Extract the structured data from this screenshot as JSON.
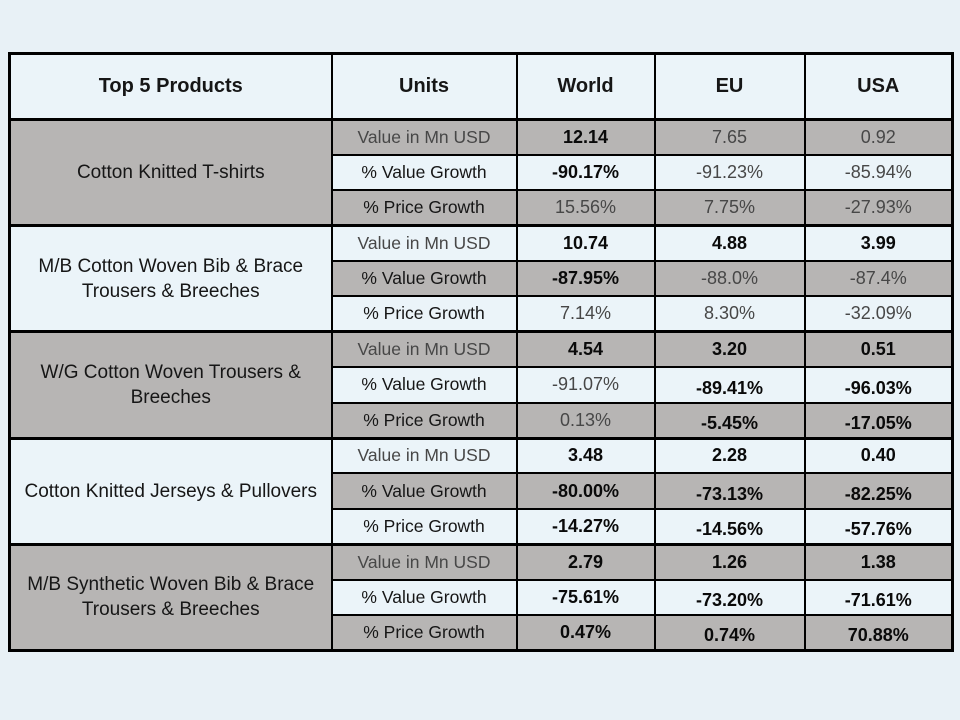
{
  "colors": {
    "page_background": "#e8f1f6",
    "light_cell": "#ebf4f9",
    "gray_cell": "#b7b5b4",
    "border": "#000000",
    "text_strong": "#0a0a0a",
    "text_normal": "#161616",
    "text_muted": "#474747"
  },
  "table": {
    "headers": [
      "Top 5 Products",
      "Units",
      "World",
      "EU",
      "USA"
    ],
    "value_columns": [
      "world",
      "eu",
      "usa"
    ],
    "products": [
      {
        "name": "Cotton Knitted  T-shirts",
        "rows": [
          {
            "unit": {
              "text": "Value in Mn USD",
              "emphasis": "muted"
            },
            "values": [
              {
                "text": "12.14",
                "emphasis": "strong"
              },
              {
                "text": "7.65",
                "emphasis": "muted"
              },
              {
                "text": "0.92",
                "emphasis": "muted"
              }
            ]
          },
          {
            "unit": {
              "text": "% Value Growth",
              "emphasis": "normal"
            },
            "values": [
              {
                "text": "-90.17%",
                "emphasis": "strong"
              },
              {
                "text": "-91.23%",
                "emphasis": "muted"
              },
              {
                "text": "-85.94%",
                "emphasis": "muted"
              }
            ]
          },
          {
            "unit": {
              "text": "% Price Growth",
              "emphasis": "normal"
            },
            "values": [
              {
                "text": "15.56%",
                "emphasis": "muted"
              },
              {
                "text": "7.75%",
                "emphasis": "muted"
              },
              {
                "text": "-27.93%",
                "emphasis": "muted"
              }
            ]
          }
        ]
      },
      {
        "name": "M/B Cotton Woven Bib & Brace Trousers & Breeches",
        "rows": [
          {
            "unit": {
              "text": "Value in Mn USD",
              "emphasis": "muted"
            },
            "values": [
              {
                "text": "10.74",
                "emphasis": "strong"
              },
              {
                "text": "4.88",
                "emphasis": "strong"
              },
              {
                "text": "3.99",
                "emphasis": "strong"
              }
            ]
          },
          {
            "unit": {
              "text": "% Value Growth",
              "emphasis": "normal"
            },
            "values": [
              {
                "text": "-87.95%",
                "emphasis": "strong"
              },
              {
                "text": "-88.0%",
                "emphasis": "muted"
              },
              {
                "text": "-87.4%",
                "emphasis": "muted"
              }
            ]
          },
          {
            "unit": {
              "text": "% Price Growth",
              "emphasis": "normal"
            },
            "values": [
              {
                "text": "7.14%",
                "emphasis": "muted"
              },
              {
                "text": "8.30%",
                "emphasis": "muted"
              },
              {
                "text": "-32.09%",
                "emphasis": "muted"
              }
            ]
          }
        ]
      },
      {
        "name": "W/G Cotton Woven Trousers & Breeches",
        "rows": [
          {
            "unit": {
              "text": "Value in Mn USD",
              "emphasis": "muted"
            },
            "values": [
              {
                "text": "4.54",
                "emphasis": "strong"
              },
              {
                "text": "3.20",
                "emphasis": "strong"
              },
              {
                "text": "0.51",
                "emphasis": "strong"
              }
            ]
          },
          {
            "unit": {
              "text": "% Value Growth",
              "emphasis": "normal"
            },
            "values": [
              {
                "text": "-91.07%",
                "emphasis": "muted"
              },
              {
                "text": "-89.41%",
                "emphasis": "strong",
                "offset": true
              },
              {
                "text": "-96.03%",
                "emphasis": "strong",
                "offset": true
              }
            ]
          },
          {
            "unit": {
              "text": "% Price Growth",
              "emphasis": "normal"
            },
            "values": [
              {
                "text": "0.13%",
                "emphasis": "muted"
              },
              {
                "text": "-5.45%",
                "emphasis": "strong",
                "offset": true
              },
              {
                "text": "-17.05%",
                "emphasis": "strong",
                "offset": true
              }
            ]
          }
        ]
      },
      {
        "name": "Cotton Knitted  Jerseys & Pullovers",
        "rows": [
          {
            "unit": {
              "text": "Value in Mn USD",
              "emphasis": "muted"
            },
            "values": [
              {
                "text": "3.48",
                "emphasis": "strong"
              },
              {
                "text": "2.28",
                "emphasis": "strong"
              },
              {
                "text": "0.40",
                "emphasis": "strong"
              }
            ]
          },
          {
            "unit": {
              "text": "% Value Growth",
              "emphasis": "normal"
            },
            "values": [
              {
                "text": "-80.00%",
                "emphasis": "strong"
              },
              {
                "text": "-73.13%",
                "emphasis": "strong",
                "offset": true
              },
              {
                "text": "-82.25%",
                "emphasis": "strong",
                "offset": true
              }
            ]
          },
          {
            "unit": {
              "text": "% Price Growth",
              "emphasis": "normal"
            },
            "values": [
              {
                "text": "-14.27%",
                "emphasis": "strong"
              },
              {
                "text": "-14.56%",
                "emphasis": "strong",
                "offset": true
              },
              {
                "text": "-57.76%",
                "emphasis": "strong",
                "offset": true
              }
            ]
          }
        ]
      },
      {
        "name": "M/B Synthetic Woven Bib & Brace Trousers & Breeches",
        "rows": [
          {
            "unit": {
              "text": "Value in Mn USD",
              "emphasis": "muted"
            },
            "values": [
              {
                "text": "2.79",
                "emphasis": "strong"
              },
              {
                "text": "1.26",
                "emphasis": "strong"
              },
              {
                "text": "1.38",
                "emphasis": "strong"
              }
            ]
          },
          {
            "unit": {
              "text": "% Value Growth",
              "emphasis": "normal"
            },
            "values": [
              {
                "text": "-75.61%",
                "emphasis": "strong"
              },
              {
                "text": "-73.20%",
                "emphasis": "strong",
                "offset": true
              },
              {
                "text": "-71.61%",
                "emphasis": "strong",
                "offset": true
              }
            ]
          },
          {
            "unit": {
              "text": "% Price Growth",
              "emphasis": "normal"
            },
            "values": [
              {
                "text": "0.47%",
                "emphasis": "strong"
              },
              {
                "text": "0.74%",
                "emphasis": "strong",
                "offset": true
              },
              {
                "text": "70.88%",
                "emphasis": "strong",
                "offset": true
              }
            ]
          }
        ]
      }
    ]
  }
}
